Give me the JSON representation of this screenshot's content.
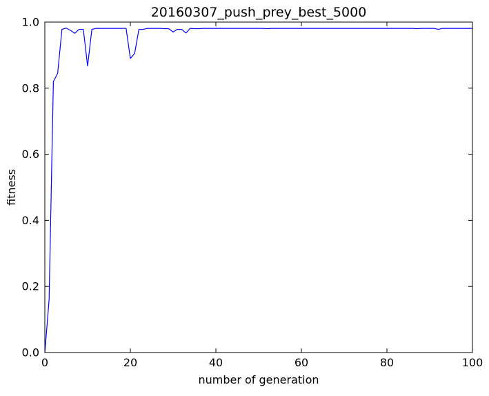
{
  "chart_data": {
    "type": "line",
    "title": "20160307_push_prey_best_5000",
    "xlabel": "number of generation",
    "ylabel": "fitness",
    "xlim": [
      0,
      100
    ],
    "ylim": [
      0.0,
      1.0
    ],
    "xticks": [
      0,
      20,
      40,
      60,
      80,
      100
    ],
    "xtick_labels": [
      "0",
      "20",
      "40",
      "60",
      "80",
      "100"
    ],
    "yticks": [
      0.0,
      0.2,
      0.4,
      0.6,
      0.8,
      1.0
    ],
    "ytick_labels": [
      "0.0",
      "0.2",
      "0.4",
      "0.6",
      "0.8",
      "1.0"
    ],
    "grid": false,
    "legend": "none",
    "series": [
      {
        "color": "#0000ff",
        "x": [
          0,
          1,
          2,
          3,
          4,
          5,
          6,
          7,
          8,
          9,
          10,
          11,
          12,
          13,
          14,
          15,
          16,
          17,
          18,
          19,
          20,
          21,
          22,
          23,
          24,
          25,
          26,
          27,
          28,
          29,
          30,
          31,
          32,
          33,
          34,
          35,
          36,
          37,
          38,
          39,
          40,
          41,
          42,
          43,
          44,
          45,
          46,
          47,
          48,
          49,
          50,
          51,
          52,
          53,
          54,
          55,
          56,
          57,
          58,
          59,
          60,
          61,
          62,
          63,
          64,
          65,
          66,
          67,
          68,
          69,
          70,
          71,
          72,
          73,
          74,
          75,
          76,
          77,
          78,
          79,
          80,
          81,
          82,
          83,
          84,
          85,
          86,
          87,
          88,
          89,
          90,
          91,
          92,
          93,
          94,
          95,
          96,
          97,
          98,
          99,
          100
        ],
        "y": [
          0.0,
          0.16,
          0.82,
          0.845,
          0.978,
          0.982,
          0.975,
          0.966,
          0.978,
          0.978,
          0.867,
          0.978,
          0.981,
          0.981,
          0.981,
          0.981,
          0.981,
          0.981,
          0.981,
          0.981,
          0.89,
          0.905,
          0.978,
          0.978,
          0.981,
          0.981,
          0.981,
          0.981,
          0.98,
          0.98,
          0.97,
          0.978,
          0.978,
          0.967,
          0.981,
          0.98,
          0.98,
          0.981,
          0.981,
          0.981,
          0.981,
          0.981,
          0.981,
          0.981,
          0.981,
          0.981,
          0.981,
          0.981,
          0.981,
          0.981,
          0.981,
          0.981,
          0.98,
          0.981,
          0.981,
          0.981,
          0.981,
          0.981,
          0.981,
          0.981,
          0.981,
          0.981,
          0.981,
          0.981,
          0.981,
          0.981,
          0.981,
          0.981,
          0.981,
          0.981,
          0.981,
          0.981,
          0.981,
          0.981,
          0.981,
          0.981,
          0.981,
          0.981,
          0.981,
          0.981,
          0.981,
          0.981,
          0.981,
          0.981,
          0.981,
          0.981,
          0.981,
          0.98,
          0.981,
          0.981,
          0.981,
          0.981,
          0.978,
          0.981,
          0.981,
          0.981,
          0.981,
          0.981,
          0.981,
          0.981,
          0.981
        ]
      }
    ]
  }
}
